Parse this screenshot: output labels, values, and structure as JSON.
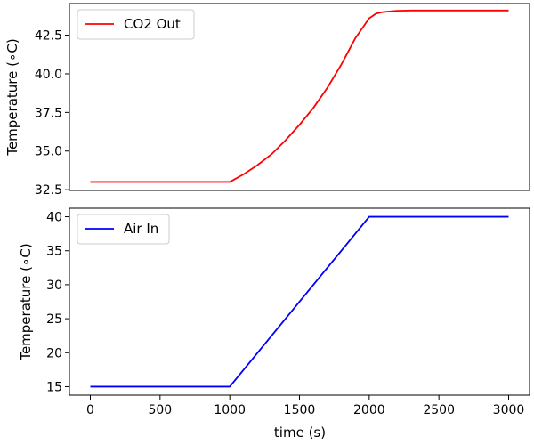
{
  "chart_data": [
    {
      "type": "line",
      "title": "",
      "xlabel": "",
      "ylabel": "Temperature (∘C)",
      "xlim": [
        -150,
        3150
      ],
      "ylim": [
        32.45,
        44.55
      ],
      "xticks": [],
      "yticks": [
        32.5,
        35.0,
        37.5,
        40.0,
        42.5
      ],
      "ytick_labels": [
        "32.5",
        "35.0",
        "37.5",
        "40.0",
        "42.5"
      ],
      "legend_position": "upper-left",
      "series": [
        {
          "name": "CO2 Out",
          "color": "#ff0000",
          "x": [
            0,
            1000,
            1100,
            1200,
            1300,
            1400,
            1500,
            1600,
            1700,
            1800,
            1900,
            2000,
            2050,
            2100,
            2200,
            2300,
            2500,
            3000
          ],
          "y": [
            33.0,
            33.0,
            33.5,
            34.1,
            34.8,
            35.7,
            36.7,
            37.8,
            39.1,
            40.6,
            42.3,
            43.6,
            43.9,
            44.0,
            44.08,
            44.1,
            44.1,
            44.1
          ]
        }
      ]
    },
    {
      "type": "line",
      "title": "",
      "xlabel": "time (s)",
      "ylabel": "Temperature (∘C)",
      "xlim": [
        -150,
        3150
      ],
      "ylim": [
        13.75,
        41.25
      ],
      "xticks": [
        0,
        500,
        1000,
        1500,
        2000,
        2500,
        3000
      ],
      "xtick_labels": [
        "0",
        "500",
        "1000",
        "1500",
        "2000",
        "2500",
        "3000"
      ],
      "yticks": [
        15,
        20,
        25,
        30,
        35,
        40
      ],
      "ytick_labels": [
        "15",
        "20",
        "25",
        "30",
        "35",
        "40"
      ],
      "legend_position": "upper-left",
      "series": [
        {
          "name": "Air In",
          "color": "#0000ff",
          "x": [
            0,
            1000,
            2000,
            3000
          ],
          "y": [
            15,
            15,
            40,
            40
          ]
        }
      ]
    }
  ]
}
